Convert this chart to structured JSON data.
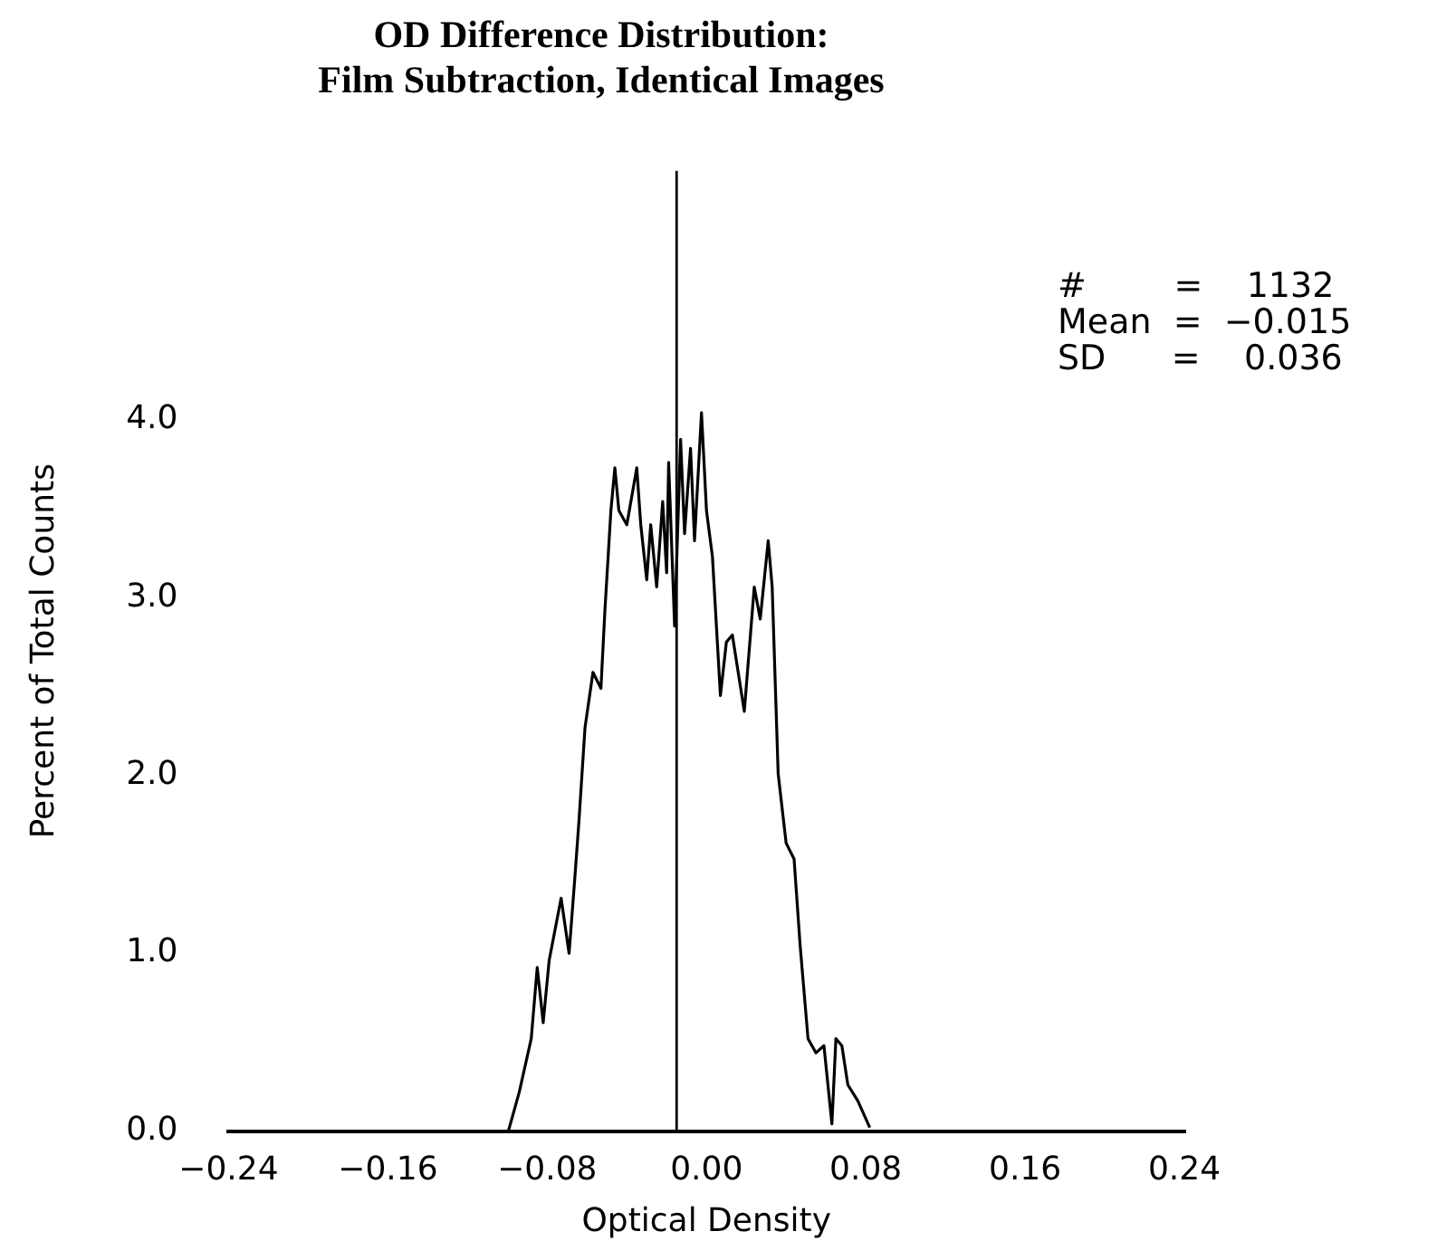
{
  "chart_data": {
    "type": "line",
    "title": "OD Difference Distribution:\nFilm Subtraction, Identical Images",
    "xlabel": "Optical Density",
    "ylabel": "Percent of Total Counts",
    "x": [
      -0.0995,
      -0.094,
      -0.088,
      -0.085,
      -0.082,
      -0.079,
      -0.073,
      -0.069,
      -0.066,
      -0.064,
      -0.061,
      -0.057,
      -0.053,
      -0.051,
      -0.048,
      -0.046,
      -0.044,
      -0.04,
      -0.035,
      -0.033,
      -0.03,
      -0.028,
      -0.025,
      -0.022,
      -0.02,
      -0.019,
      -0.016,
      -0.013,
      -0.011,
      -0.008,
      -0.006,
      -0.0025,
      0.0,
      0.003,
      0.007,
      0.01,
      0.013,
      0.019,
      0.024,
      0.027,
      0.031,
      0.033,
      0.036,
      0.04,
      0.044,
      0.047,
      0.051,
      0.055,
      0.059,
      0.063,
      0.065,
      0.068,
      0.071,
      0.076,
      0.082
    ],
    "series": [
      {
        "color": "#000000",
        "values": [
          0,
          0.22,
          0.52,
          0.92,
          0.61,
          0.96,
          1.31,
          1.0,
          1.44,
          1.75,
          2.27,
          2.58,
          2.49,
          2.93,
          3.49,
          3.73,
          3.49,
          3.41,
          3.73,
          3.41,
          3.1,
          3.41,
          3.06,
          3.54,
          3.14,
          3.76,
          2.84,
          3.89,
          3.36,
          3.84,
          3.32,
          4.04,
          3.49,
          3.23,
          2.45,
          2.75,
          2.79,
          2.36,
          3.06,
          2.88,
          3.32,
          3.06,
          2.01,
          1.62,
          1.53,
          1.05,
          0.52,
          0.44,
          0.48,
          0.04,
          0.52,
          0.48,
          0.26,
          0.17,
          0.02
        ]
      }
    ],
    "xlim": [
      -0.24,
      0.24
    ],
    "xticks": [
      {
        "value": -0.24,
        "label": "−0.24"
      },
      {
        "value": -0.16,
        "label": "−0.16"
      },
      {
        "value": -0.08,
        "label": "−0.08"
      },
      {
        "value": 0,
        "label": "0.00"
      },
      {
        "value": 0.08,
        "label": "0.08"
      },
      {
        "value": 0.16,
        "label": "0.16"
      },
      {
        "value": 0.24,
        "label": "0.24"
      }
    ],
    "ylim": [
      0,
      5.4
    ],
    "yticks": [
      {
        "value": 0,
        "label": "0.0"
      },
      {
        "value": 1,
        "label": "1.0"
      },
      {
        "value": 2,
        "label": "2.0"
      },
      {
        "value": 3,
        "label": "3.0"
      },
      {
        "value": 4,
        "label": "4.0"
      }
    ],
    "ref_lines": [
      {
        "axis": "x",
        "value": -0.015,
        "color": "#000000"
      }
    ],
    "annotations": [
      "#        =    1132",
      "Mean  =  −0.015",
      "SD      =    0.036"
    ],
    "grid": false,
    "legend": false,
    "marker": "none",
    "line_style": "solid"
  }
}
